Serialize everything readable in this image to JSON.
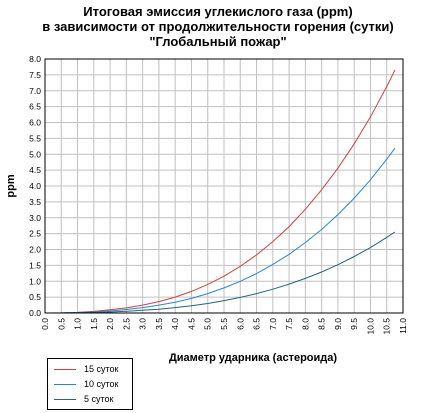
{
  "chart_data": {
    "type": "line",
    "title": "Итоговая эмиссия углекислого газа (ppm)",
    "subtitle_1": "в зависимости от продолжительности горения (сутки)",
    "subtitle_2": "\"Глобальный пожар\"",
    "xlabel": "Диаметр ударника (астероида)",
    "ylabel": "ppm",
    "xlim": [
      0,
      11
    ],
    "ylim": [
      0,
      8
    ],
    "x_ticks": [
      "0.0",
      "0.5",
      "1.0",
      "1.5",
      "2.0",
      "2.5",
      "3.0",
      "3.5",
      "4.0",
      "4.5",
      "5.0",
      "5.5",
      "6.0",
      "6.5",
      "7.0",
      "7.5",
      "8.0",
      "8.5",
      "9.0",
      "9.5",
      "10.0",
      "10.5",
      "11.0"
    ],
    "y_ticks": [
      "0.0",
      "0.5",
      "1.0",
      "1.5",
      "2.0",
      "2.5",
      "3.0",
      "3.5",
      "4.0",
      "4.5",
      "5.0",
      "5.5",
      "6.0",
      "6.5",
      "7.0",
      "7.5",
      "8.0"
    ],
    "grid": true,
    "legend_position": "bottom-left",
    "x": [
      0,
      0.5,
      1,
      1.5,
      2,
      2.5,
      3,
      3.5,
      4,
      4.5,
      5,
      5.5,
      6,
      6.5,
      7,
      7.5,
      8,
      8.5,
      9,
      9.5,
      10,
      10.5,
      10.75
    ],
    "series": [
      {
        "name": "15 суток",
        "color": "#cc4444",
        "values": [
          0,
          0.004,
          0.02,
          0.05,
          0.1,
          0.16,
          0.25,
          0.36,
          0.5,
          0.68,
          0.9,
          1.16,
          1.47,
          1.83,
          2.25,
          2.72,
          3.27,
          3.88,
          4.56,
          5.33,
          6.18,
          7.13,
          7.65
        ]
      },
      {
        "name": "10 суток",
        "color": "#2f86c8",
        "values": [
          0,
          0.003,
          0.013,
          0.033,
          0.065,
          0.11,
          0.17,
          0.25,
          0.34,
          0.46,
          0.61,
          0.79,
          1.0,
          1.24,
          1.53,
          1.85,
          2.22,
          2.63,
          3.1,
          3.62,
          4.2,
          4.84,
          5.19
        ]
      },
      {
        "name": "5 суток",
        "color": "#226677",
        "values": [
          0,
          0.001,
          0.006,
          0.016,
          0.032,
          0.055,
          0.085,
          0.12,
          0.17,
          0.23,
          0.3,
          0.39,
          0.49,
          0.61,
          0.75,
          0.91,
          1.09,
          1.29,
          1.52,
          1.78,
          2.06,
          2.38,
          2.55
        ]
      }
    ]
  }
}
